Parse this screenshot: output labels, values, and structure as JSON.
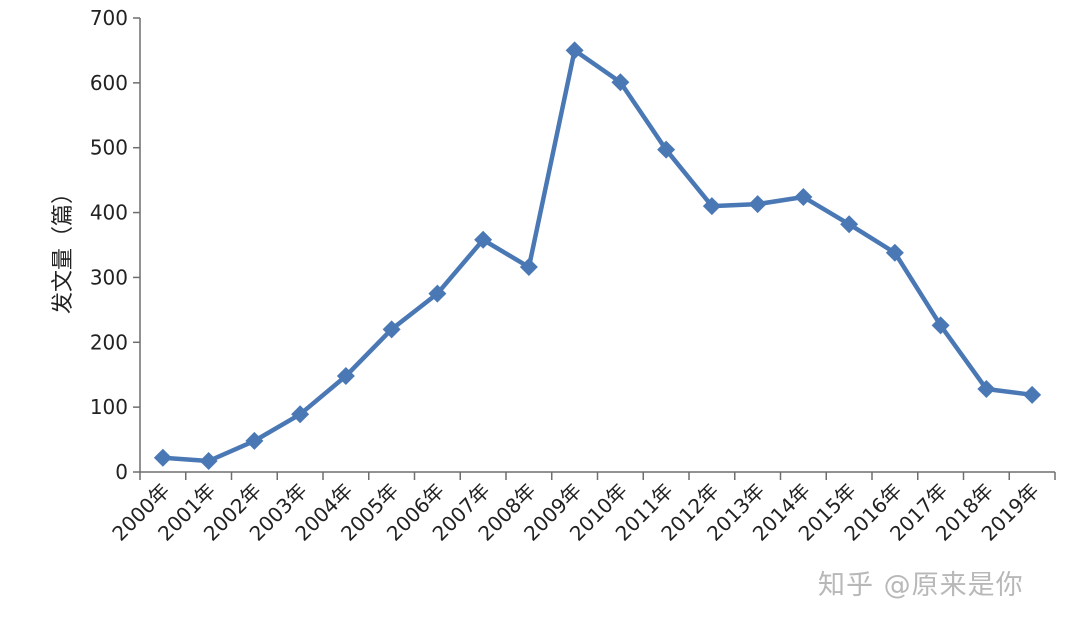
{
  "chart_data": {
    "type": "line",
    "title": "",
    "xlabel": "",
    "ylabel": "发文量（篇）",
    "categories": [
      "2000年",
      "2001年",
      "2002年",
      "2003年",
      "2004年",
      "2005年",
      "2006年",
      "2007年",
      "2008年",
      "2009年",
      "2010年",
      "2011年",
      "2012年",
      "2013年",
      "2014年",
      "2015年",
      "2016年",
      "2017年",
      "2018年",
      "2019年"
    ],
    "series": [
      {
        "values": [
          22,
          17,
          48,
          89,
          148,
          220,
          275,
          358,
          316,
          650,
          601,
          497,
          410,
          413,
          424,
          382,
          338,
          226,
          128,
          119
        ]
      }
    ],
    "ylim": [
      0,
      700
    ],
    "yticks": [
      0,
      100,
      200,
      300,
      400,
      500,
      600,
      700
    ],
    "grid": false,
    "legend": "none",
    "line_color": "#4a78b5",
    "marker": "diamond"
  },
  "watermark": "知乎 @原来是你"
}
